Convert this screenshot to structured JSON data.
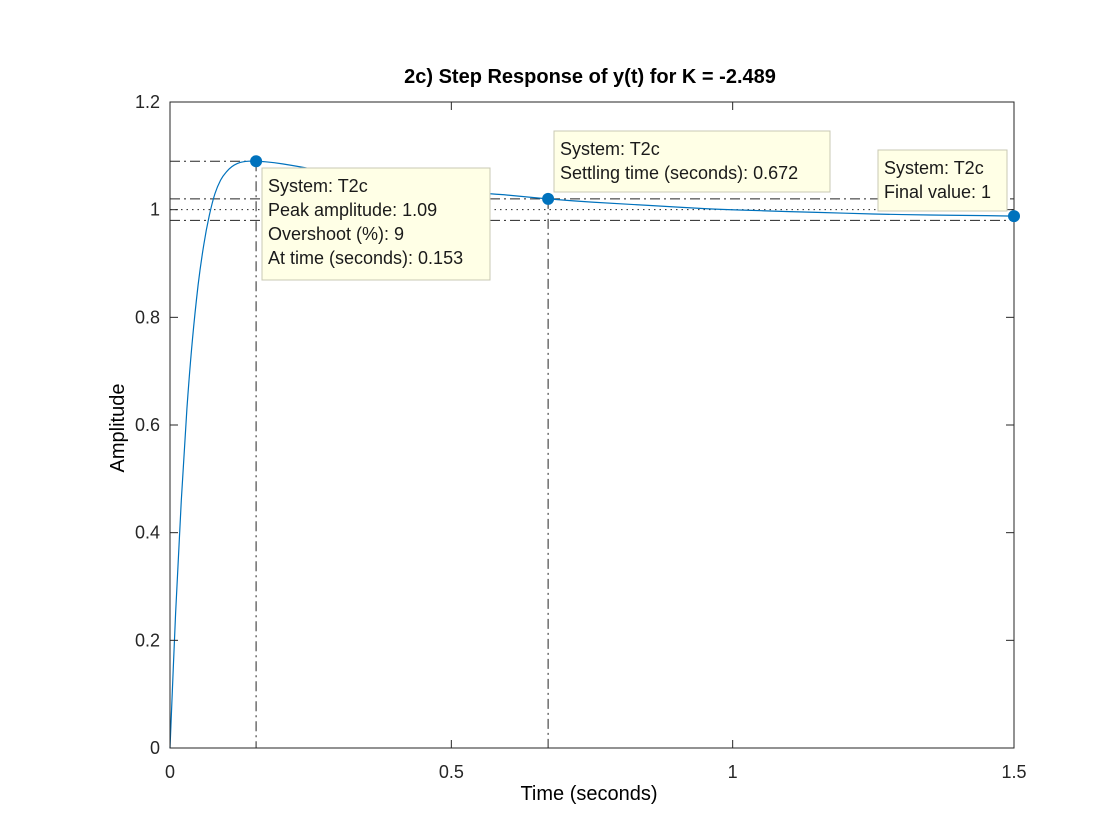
{
  "chart_data": {
    "type": "line",
    "title": "2c) Step Response of y(t) for K = -2.489",
    "xlabel": "Time (seconds)",
    "ylabel": "Amplitude",
    "xlim": [
      0,
      1.5
    ],
    "ylim": [
      0,
      1.2
    ],
    "xticks": [
      0,
      0.5,
      1,
      1.5
    ],
    "xtick_labels": [
      "0",
      "0.5",
      "1",
      "1.5"
    ],
    "yticks": [
      0,
      0.2,
      0.4,
      0.6,
      0.8,
      1,
      1.2
    ],
    "ytick_labels": [
      "0",
      "0.2",
      "0.4",
      "0.6",
      "0.8",
      "1",
      "1.2"
    ],
    "grid": false,
    "line_color": "#0072BD",
    "marker_color": "#0072BD",
    "datatip_fill": "#FFFFE6",
    "series": [
      {
        "x": [
          0,
          0.01,
          0.02,
          0.03,
          0.04,
          0.05,
          0.06,
          0.07,
          0.08,
          0.09,
          0.1,
          0.11,
          0.12,
          0.13,
          0.14,
          0.153,
          0.17,
          0.2,
          0.25,
          0.3,
          0.35,
          0.4,
          0.45,
          0.5,
          0.55,
          0.6,
          0.672,
          0.75,
          0.85,
          0.95,
          1.05,
          1.15,
          1.25,
          1.35,
          1.45,
          1.5
        ],
        "y": [
          0,
          0.25,
          0.46,
          0.63,
          0.76,
          0.86,
          0.935,
          0.99,
          1.03,
          1.055,
          1.07,
          1.08,
          1.086,
          1.089,
          1.09,
          1.09,
          1.089,
          1.085,
          1.076,
          1.066,
          1.057,
          1.049,
          1.042,
          1.036,
          1.031,
          1.027,
          1.02,
          1.014,
          1.008,
          1.002,
          0.998,
          0.995,
          0.992,
          0.99,
          0.989,
          0.988
        ]
      }
    ],
    "reference_lines": {
      "final_value": 1,
      "settling_band": [
        0.98,
        1.02
      ]
    },
    "datatips": [
      {
        "x": 0.153,
        "y": 1.09,
        "lines": [
          "System: T2c",
          "Peak amplitude: 1.09",
          "Overshoot (%): 9",
          "At time (seconds): 0.153"
        ]
      },
      {
        "x": 0.672,
        "y": 1.02,
        "lines": [
          "System: T2c",
          "Settling time (seconds): 0.672"
        ]
      },
      {
        "x": 1.5,
        "y": 0.988,
        "lines": [
          "System: T2c",
          "Final value: 1"
        ]
      }
    ]
  }
}
